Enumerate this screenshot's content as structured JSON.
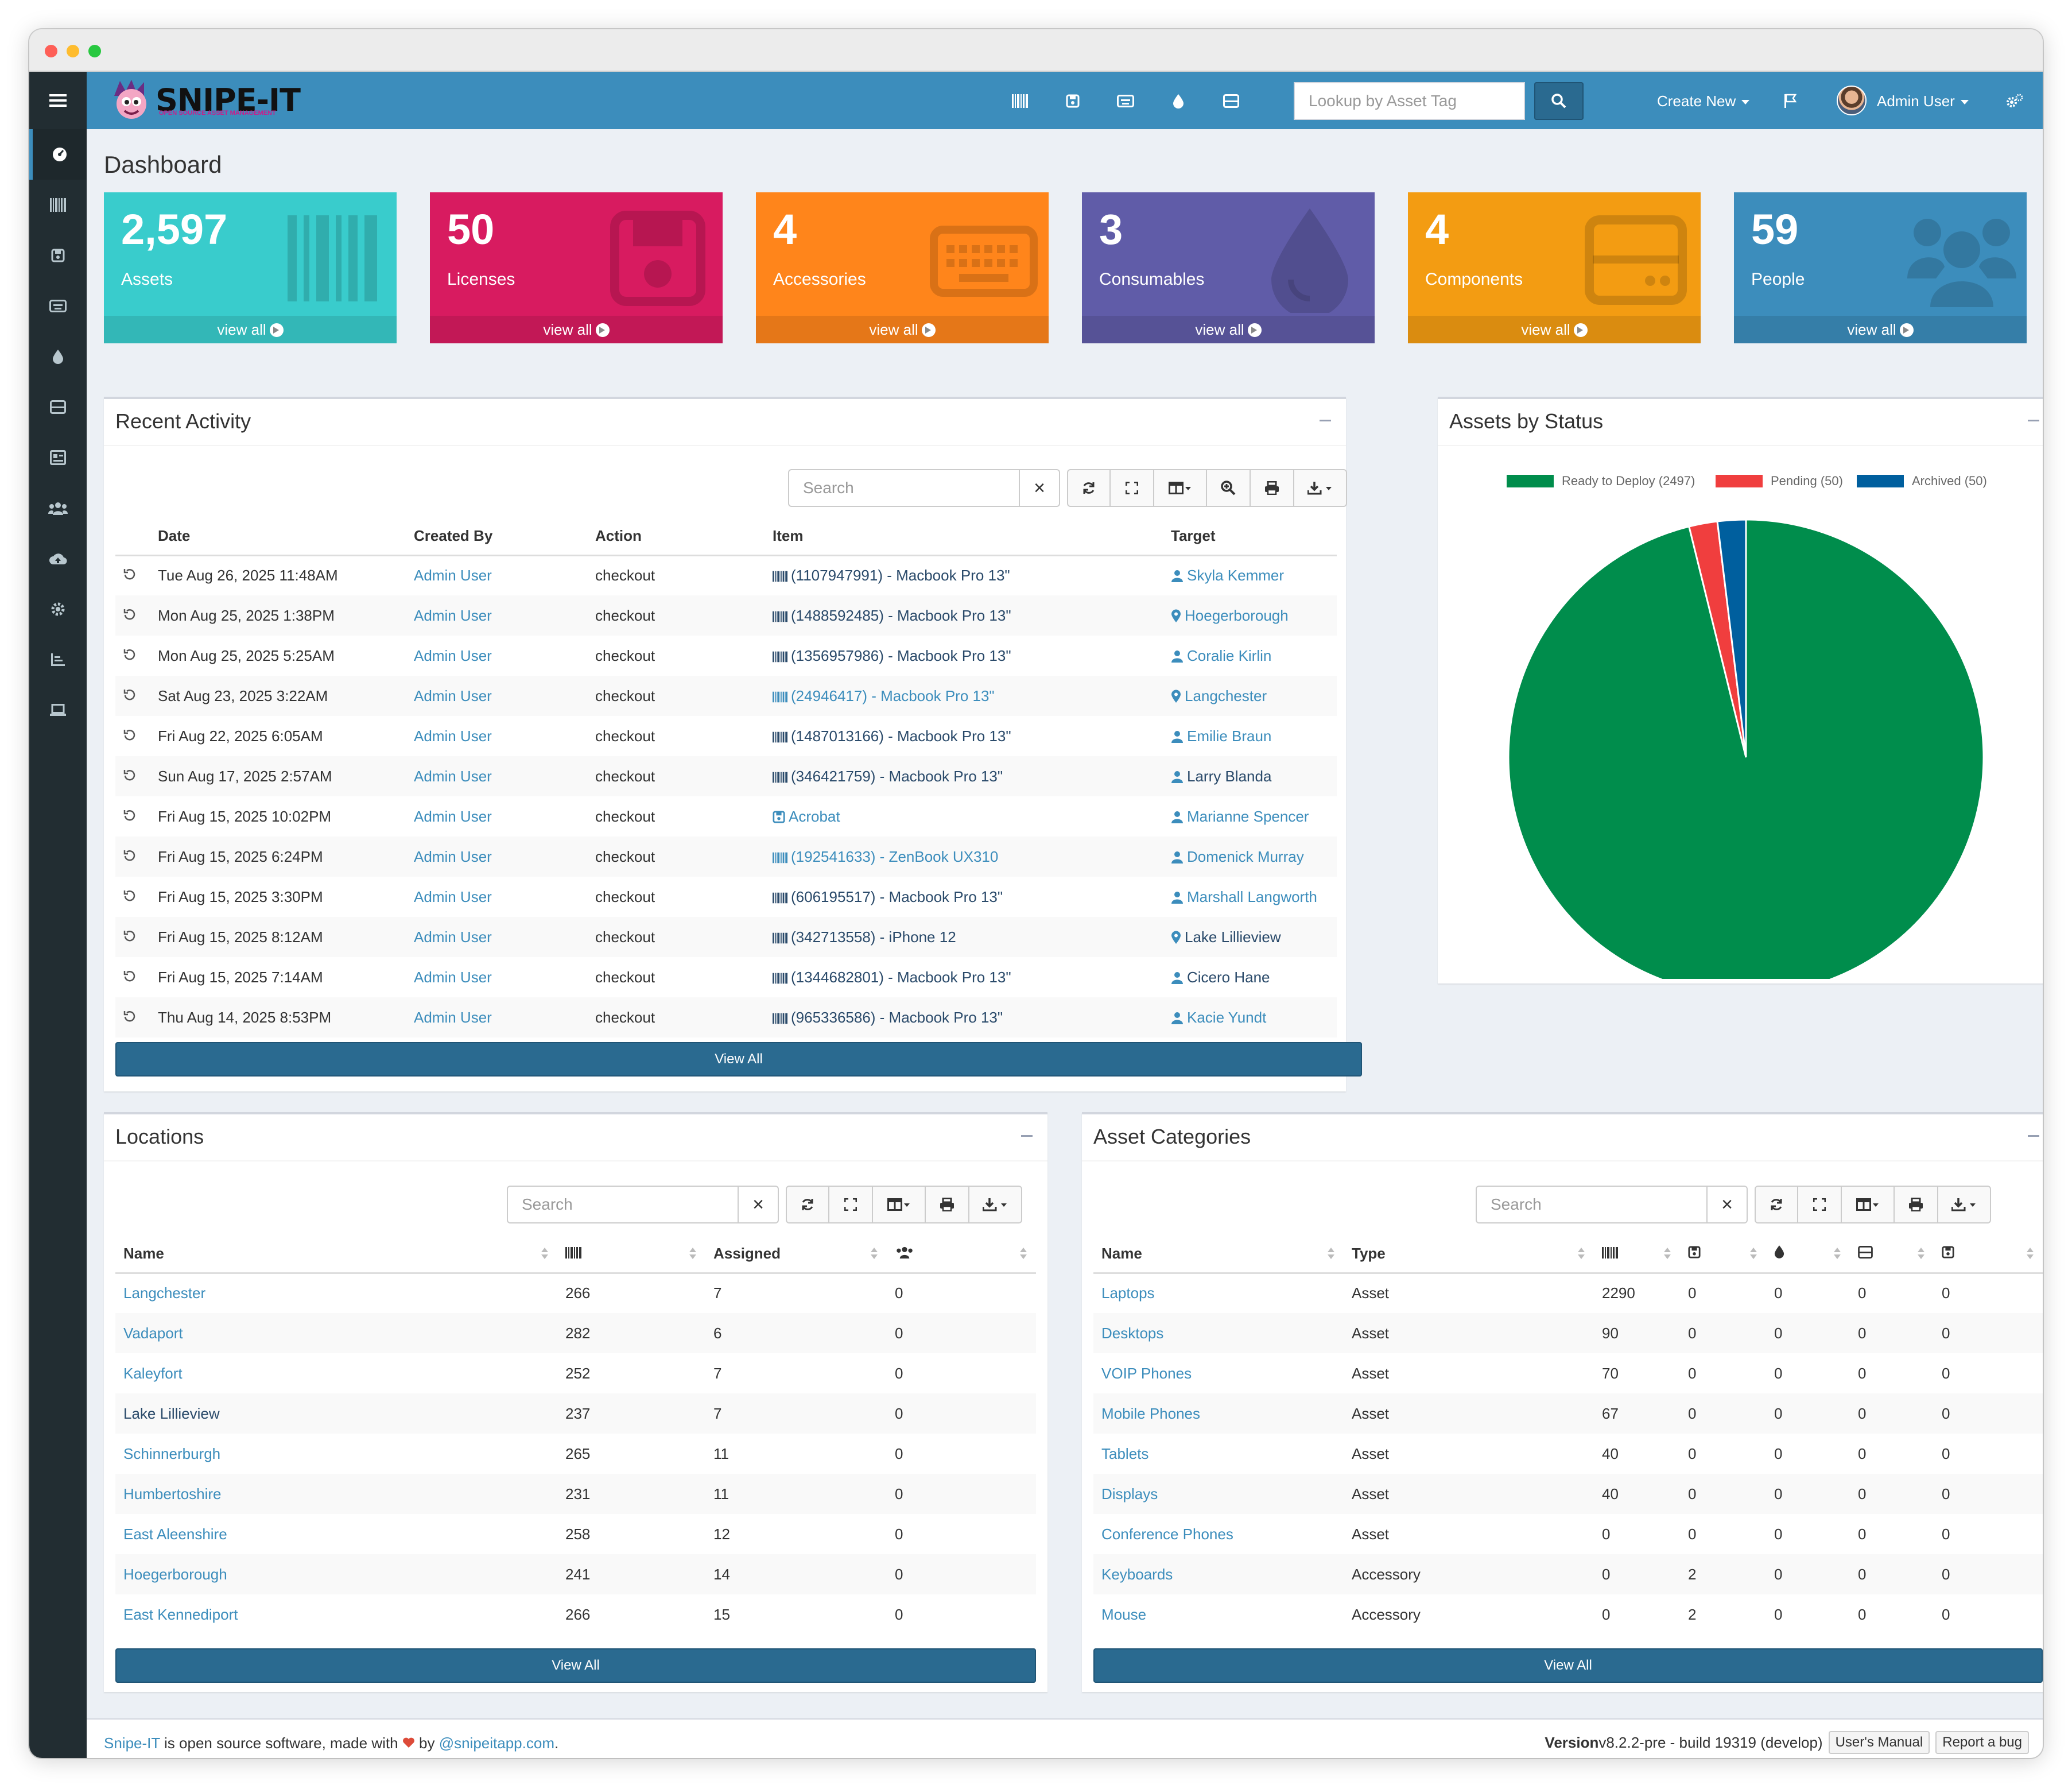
{
  "app": {
    "logo_text": "SNIPE-IT",
    "logo_subtitle": "OPEN SOURCE ASSET MANAGEMENT"
  },
  "header": {
    "lookup_placeholder": "Lookup by Asset Tag",
    "create_new": "Create New",
    "user": "Admin User",
    "icons": [
      "barcode-icon",
      "floppy-icon",
      "keyboard-icon",
      "drop-icon",
      "hdd-icon"
    ]
  },
  "sidebar": {
    "icons": [
      "dashboard-icon",
      "barcode-icon",
      "floppy-icon",
      "keyboard-icon",
      "drop-icon",
      "hdd-icon",
      "id-card-icon",
      "users-icon",
      "cloud-upload-icon",
      "gear-icon",
      "chart-icon",
      "laptop-icon"
    ]
  },
  "page": {
    "title": "Dashboard"
  },
  "tiles": [
    {
      "value": "2,597",
      "label": "Assets",
      "link": "view all",
      "color": "#39cccc",
      "icon": "barcode-icon"
    },
    {
      "value": "50",
      "label": "Licenses",
      "link": "view all",
      "color": "#d81b60",
      "icon": "floppy-icon"
    },
    {
      "value": "4",
      "label": "Accessories",
      "link": "view all",
      "color": "#ff851b",
      "icon": "keyboard-icon"
    },
    {
      "value": "3",
      "label": "Consumables",
      "link": "view all",
      "color": "#605ca8",
      "icon": "drop-icon"
    },
    {
      "value": "4",
      "label": "Components",
      "link": "view all",
      "color": "#f39c12",
      "icon": "hdd-icon"
    },
    {
      "value": "59",
      "label": "People",
      "link": "view all",
      "color": "#3c8dbc",
      "icon": "users-icon"
    }
  ],
  "recent_activity": {
    "title": "Recent Activity",
    "search_placeholder": "Search",
    "columns": [
      "Date",
      "Created By",
      "Action",
      "Item",
      "Target"
    ],
    "rows": [
      {
        "date": "Tue Aug 26, 2025 11:48AM",
        "by": "Admin User",
        "action": "checkout",
        "item": "(1107947991) - Macbook Pro 13\"",
        "item_style": "dark",
        "item_icon": "barcode",
        "target": "Skyla Kemmer",
        "target_icon": "user",
        "target_style": "link"
      },
      {
        "date": "Mon Aug 25, 2025 1:38PM",
        "by": "Admin User",
        "action": "checkout",
        "item": "(1488592485) - Macbook Pro 13\"",
        "item_style": "dark",
        "item_icon": "barcode",
        "target": "Hoegerborough",
        "target_icon": "pin",
        "target_style": "link"
      },
      {
        "date": "Mon Aug 25, 2025 5:25AM",
        "by": "Admin User",
        "action": "checkout",
        "item": "(1356957986) - Macbook Pro 13\"",
        "item_style": "dark",
        "item_icon": "barcode",
        "target": "Coralie Kirlin",
        "target_icon": "user",
        "target_style": "link"
      },
      {
        "date": "Sat Aug 23, 2025 3:22AM",
        "by": "Admin User",
        "action": "checkout",
        "item": "(24946417) - Macbook Pro 13\"",
        "item_style": "link",
        "item_icon": "barcode",
        "target": "Langchester",
        "target_icon": "pin",
        "target_style": "link"
      },
      {
        "date": "Fri Aug 22, 2025 6:05AM",
        "by": "Admin User",
        "action": "checkout",
        "item": "(1487013166) - Macbook Pro 13\"",
        "item_style": "dark",
        "item_icon": "barcode",
        "target": "Emilie Braun",
        "target_icon": "user",
        "target_style": "link"
      },
      {
        "date": "Sun Aug 17, 2025 2:57AM",
        "by": "Admin User",
        "action": "checkout",
        "item": "(346421759) - Macbook Pro 13\"",
        "item_style": "dark",
        "item_icon": "barcode",
        "target": "Larry Blanda",
        "target_icon": "user",
        "target_style": "dark"
      },
      {
        "date": "Fri Aug 15, 2025 10:02PM",
        "by": "Admin User",
        "action": "checkout",
        "item": "Acrobat",
        "item_style": "link",
        "item_icon": "floppy",
        "target": "Marianne Spencer",
        "target_icon": "user",
        "target_style": "link"
      },
      {
        "date": "Fri Aug 15, 2025 6:24PM",
        "by": "Admin User",
        "action": "checkout",
        "item": "(192541633) - ZenBook UX310",
        "item_style": "link",
        "item_icon": "barcode",
        "target": "Domenick Murray",
        "target_icon": "user",
        "target_style": "link"
      },
      {
        "date": "Fri Aug 15, 2025 3:30PM",
        "by": "Admin User",
        "action": "checkout",
        "item": "(606195517) - Macbook Pro 13\"",
        "item_style": "dark",
        "item_icon": "barcode",
        "target": "Marshall Langworth",
        "target_icon": "user",
        "target_style": "link"
      },
      {
        "date": "Fri Aug 15, 2025 8:12AM",
        "by": "Admin User",
        "action": "checkout",
        "item": "(342713558) - iPhone 12",
        "item_style": "dark",
        "item_icon": "barcode",
        "target": "Lake Lillieview",
        "target_icon": "pin",
        "target_style": "dark"
      },
      {
        "date": "Fri Aug 15, 2025 7:14AM",
        "by": "Admin User",
        "action": "checkout",
        "item": "(1344682801) - Macbook Pro 13\"",
        "item_style": "dark",
        "item_icon": "barcode",
        "target": "Cicero Hane",
        "target_icon": "user",
        "target_style": "dark"
      },
      {
        "date": "Thu Aug 14, 2025 8:53PM",
        "by": "Admin User",
        "action": "checkout",
        "item": "(965336586) - Macbook Pro 13\"",
        "item_style": "dark",
        "item_icon": "barcode",
        "target": "Kacie Yundt",
        "target_icon": "user",
        "target_style": "link"
      }
    ],
    "view_all": "View All"
  },
  "assets_by_status": {
    "title": "Assets by Status"
  },
  "chart_data": {
    "type": "pie",
    "title": "",
    "labels": [
      "Ready to Deploy (2497)",
      "Pending (50)",
      "Archived (50)"
    ],
    "values": [
      2497,
      50,
      50
    ],
    "colors": [
      "#008d4c",
      "#f03e3e",
      "#005f9e"
    ],
    "legend_position": "top"
  },
  "locations": {
    "title": "Locations",
    "search_placeholder": "Search",
    "columns": [
      "Name",
      "",
      "Assigned",
      ""
    ],
    "column_icons": [
      "",
      "barcode-icon",
      "",
      "users-icon"
    ],
    "rows": [
      {
        "name": "Langchester",
        "style": "link",
        "assets": "266",
        "assigned": "7",
        "users": "0"
      },
      {
        "name": "Vadaport",
        "style": "link",
        "assets": "282",
        "assigned": "6",
        "users": "0"
      },
      {
        "name": "Kaleyfort",
        "style": "link",
        "assets": "252",
        "assigned": "7",
        "users": "0"
      },
      {
        "name": "Lake Lillieview",
        "style": "dark",
        "assets": "237",
        "assigned": "7",
        "users": "0"
      },
      {
        "name": "Schinnerburgh",
        "style": "link",
        "assets": "265",
        "assigned": "11",
        "users": "0"
      },
      {
        "name": "Humbertoshire",
        "style": "link",
        "assets": "231",
        "assigned": "11",
        "users": "0"
      },
      {
        "name": "East Aleenshire",
        "style": "link",
        "assets": "258",
        "assigned": "12",
        "users": "0"
      },
      {
        "name": "Hoegerborough",
        "style": "link",
        "assets": "241",
        "assigned": "14",
        "users": "0"
      },
      {
        "name": "East Kennediport",
        "style": "link",
        "assets": "266",
        "assigned": "15",
        "users": "0"
      }
    ],
    "view_all": "View All"
  },
  "categories": {
    "title": "Asset Categories",
    "search_placeholder": "Search",
    "columns": [
      "Name",
      "Type"
    ],
    "column_icons": [
      "barcode-icon",
      "floppy-icon",
      "drop-icon",
      "hdd-icon",
      "floppy-icon"
    ],
    "rows": [
      {
        "name": "Laptops",
        "type": "Asset",
        "v": [
          "2290",
          "0",
          "0",
          "0",
          "0"
        ]
      },
      {
        "name": "Desktops",
        "type": "Asset",
        "v": [
          "90",
          "0",
          "0",
          "0",
          "0"
        ]
      },
      {
        "name": "VOIP Phones",
        "type": "Asset",
        "v": [
          "70",
          "0",
          "0",
          "0",
          "0"
        ]
      },
      {
        "name": "Mobile Phones",
        "type": "Asset",
        "v": [
          "67",
          "0",
          "0",
          "0",
          "0"
        ]
      },
      {
        "name": "Tablets",
        "type": "Asset",
        "v": [
          "40",
          "0",
          "0",
          "0",
          "0"
        ]
      },
      {
        "name": "Displays",
        "type": "Asset",
        "v": [
          "40",
          "0",
          "0",
          "0",
          "0"
        ]
      },
      {
        "name": "Conference Phones",
        "type": "Asset",
        "v": [
          "0",
          "0",
          "0",
          "0",
          "0"
        ]
      },
      {
        "name": "Keyboards",
        "type": "Accessory",
        "v": [
          "0",
          "2",
          "0",
          "0",
          "0"
        ]
      },
      {
        "name": "Mouse",
        "type": "Accessory",
        "v": [
          "0",
          "2",
          "0",
          "0",
          "0"
        ]
      }
    ],
    "view_all": "View All"
  },
  "footer": {
    "brand": "Snipe-IT",
    "text1": " is open source software, made with ",
    "text2": " by ",
    "handle": "@snipeitapp.com",
    "text3": ".",
    "version_label": "Version",
    "version": " v8.2.2-pre - build 19319 (develop)",
    "manual": "User's Manual",
    "bug": "Report a bug"
  }
}
